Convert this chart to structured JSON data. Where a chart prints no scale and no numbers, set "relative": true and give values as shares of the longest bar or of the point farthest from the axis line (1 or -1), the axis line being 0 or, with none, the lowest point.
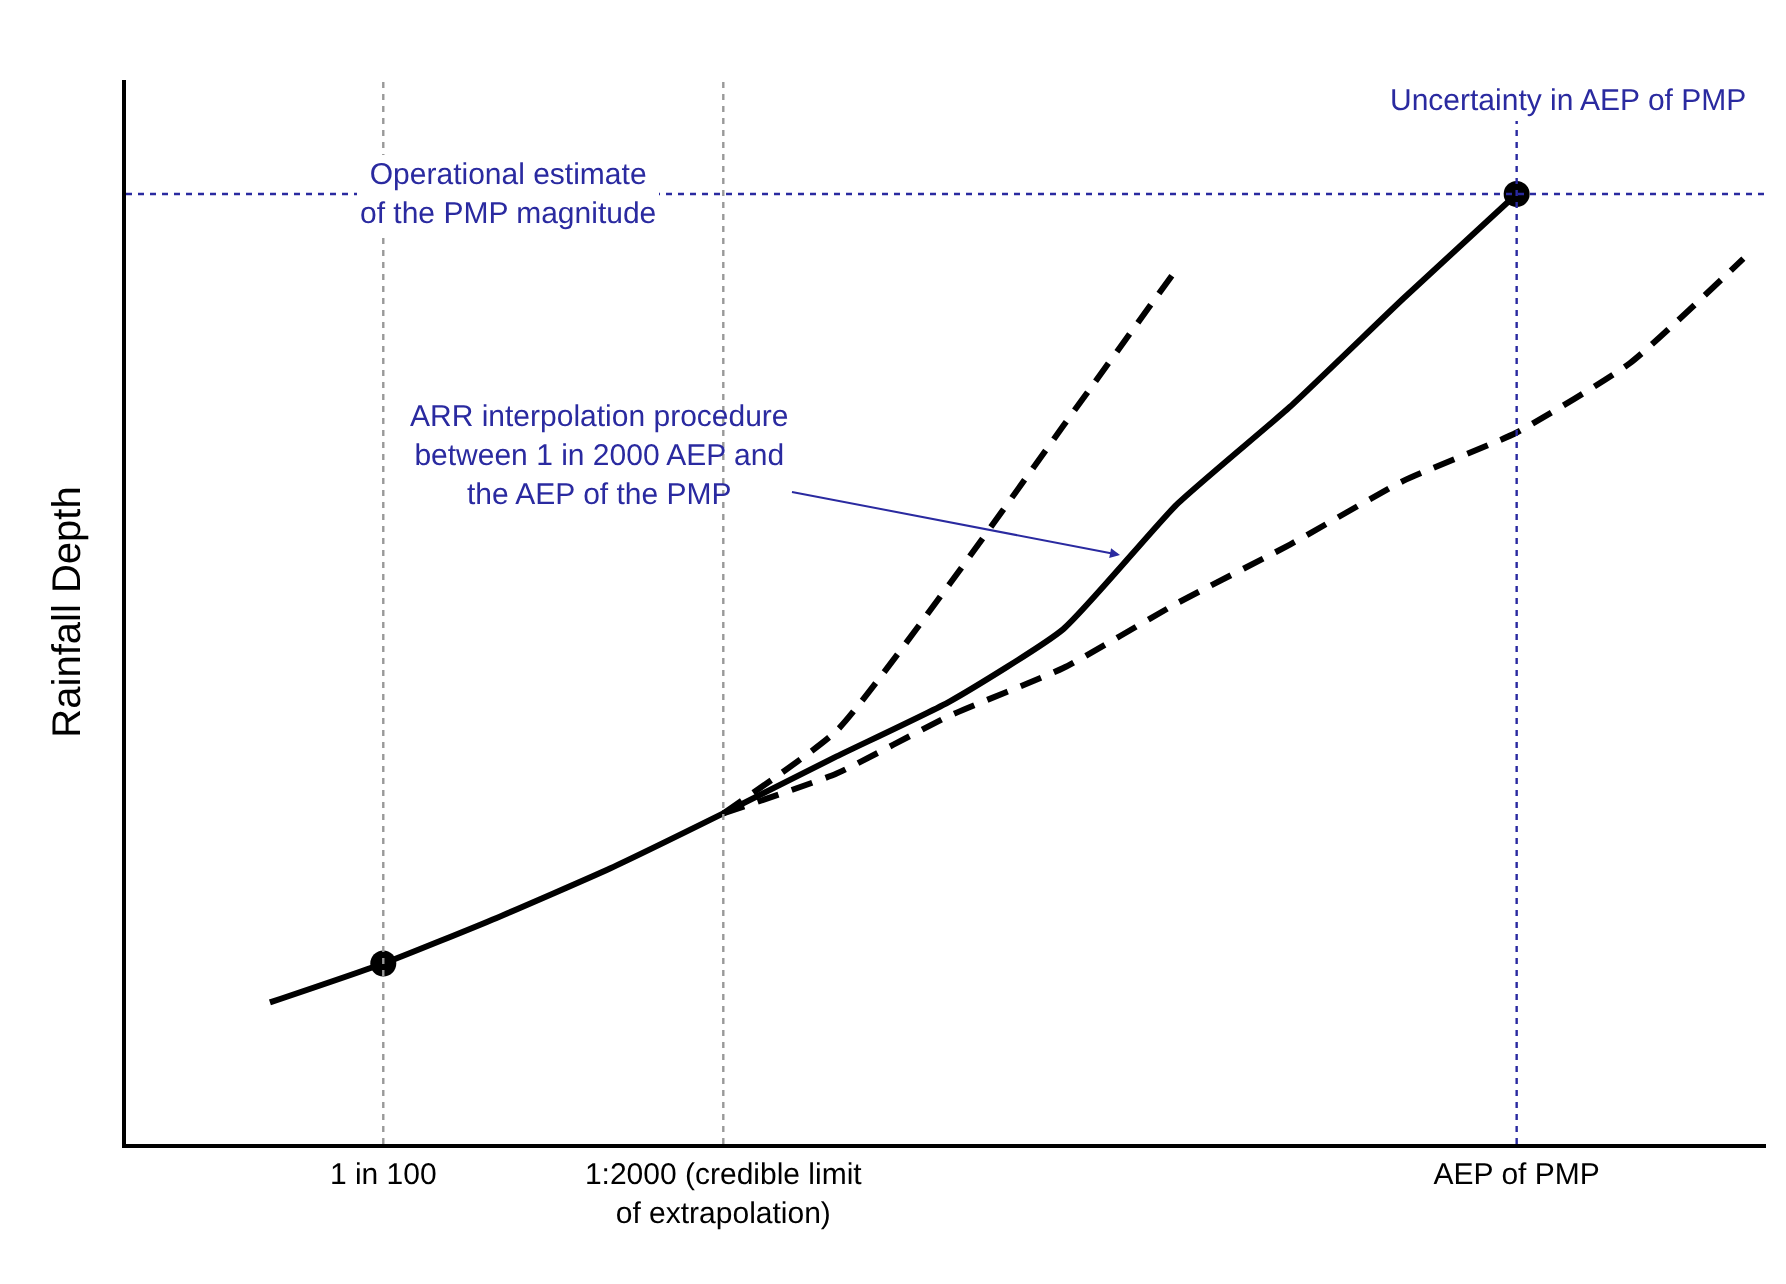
{
  "chart_data": {
    "type": "line",
    "relative": true,
    "ylabel": "Rainfall Depth",
    "categories": [
      null,
      null,
      "1 in 100",
      null,
      null,
      "1:2000 (credible limit\nof extrapolation)",
      null,
      null,
      null,
      null,
      null,
      null,
      "AEP of PMP",
      null,
      null
    ],
    "series": [
      {
        "color": "#000000",
        "line_style": "solid",
        "marker": "none",
        "values": [
          null,
          0.149,
          0.19,
          0.238,
          0.29,
          0.348,
          0.408,
          0.466,
          0.542,
          0.673,
          0.776,
          0.89,
          1.0,
          null,
          null
        ]
      },
      {
        "color": "#000000",
        "line_style": "dashed",
        "marker": "none",
        "values": [
          null,
          null,
          null,
          null,
          null,
          0.348,
          0.435,
          0.59,
          0.756,
          0.921,
          null,
          null,
          null,
          null,
          null
        ]
      },
      {
        "color": "#000000",
        "line_style": "dashed",
        "marker": "none",
        "values": [
          null,
          null,
          null,
          null,
          null,
          0.348,
          0.39,
          0.451,
          0.501,
          0.569,
          0.631,
          0.698,
          0.749,
          0.822,
          0.932
        ]
      },
      {
        "type": "scatter",
        "color": "#000000",
        "marker": "circle",
        "values": [
          null,
          null,
          0.19,
          null,
          null,
          null,
          null,
          null,
          null,
          null,
          null,
          null,
          1.0,
          null,
          null
        ]
      }
    ],
    "ref_lines": [
      {
        "axis": "x",
        "value": "1 in 100",
        "color": "#999999",
        "line_style": "dotted"
      },
      {
        "axis": "x",
        "value": "1:2000 (credible limit\nof extrapolation)",
        "color": "#999999",
        "line_style": "dotted"
      },
      {
        "axis": "x",
        "value": "AEP of PMP",
        "color": "#2a2aa0",
        "line_style": "dotted"
      },
      {
        "axis": "y",
        "value": 1.0,
        "color": "#2a2aa0",
        "line_style": "dotted"
      }
    ],
    "annotations": [
      "Operational estimate\nof the PMP magnitude",
      "Uncertainty in AEP of PMP",
      "ARR interpolation procedure\nbetween 1 in 2000 AEP and\nthe AEP of the PMP"
    ]
  }
}
